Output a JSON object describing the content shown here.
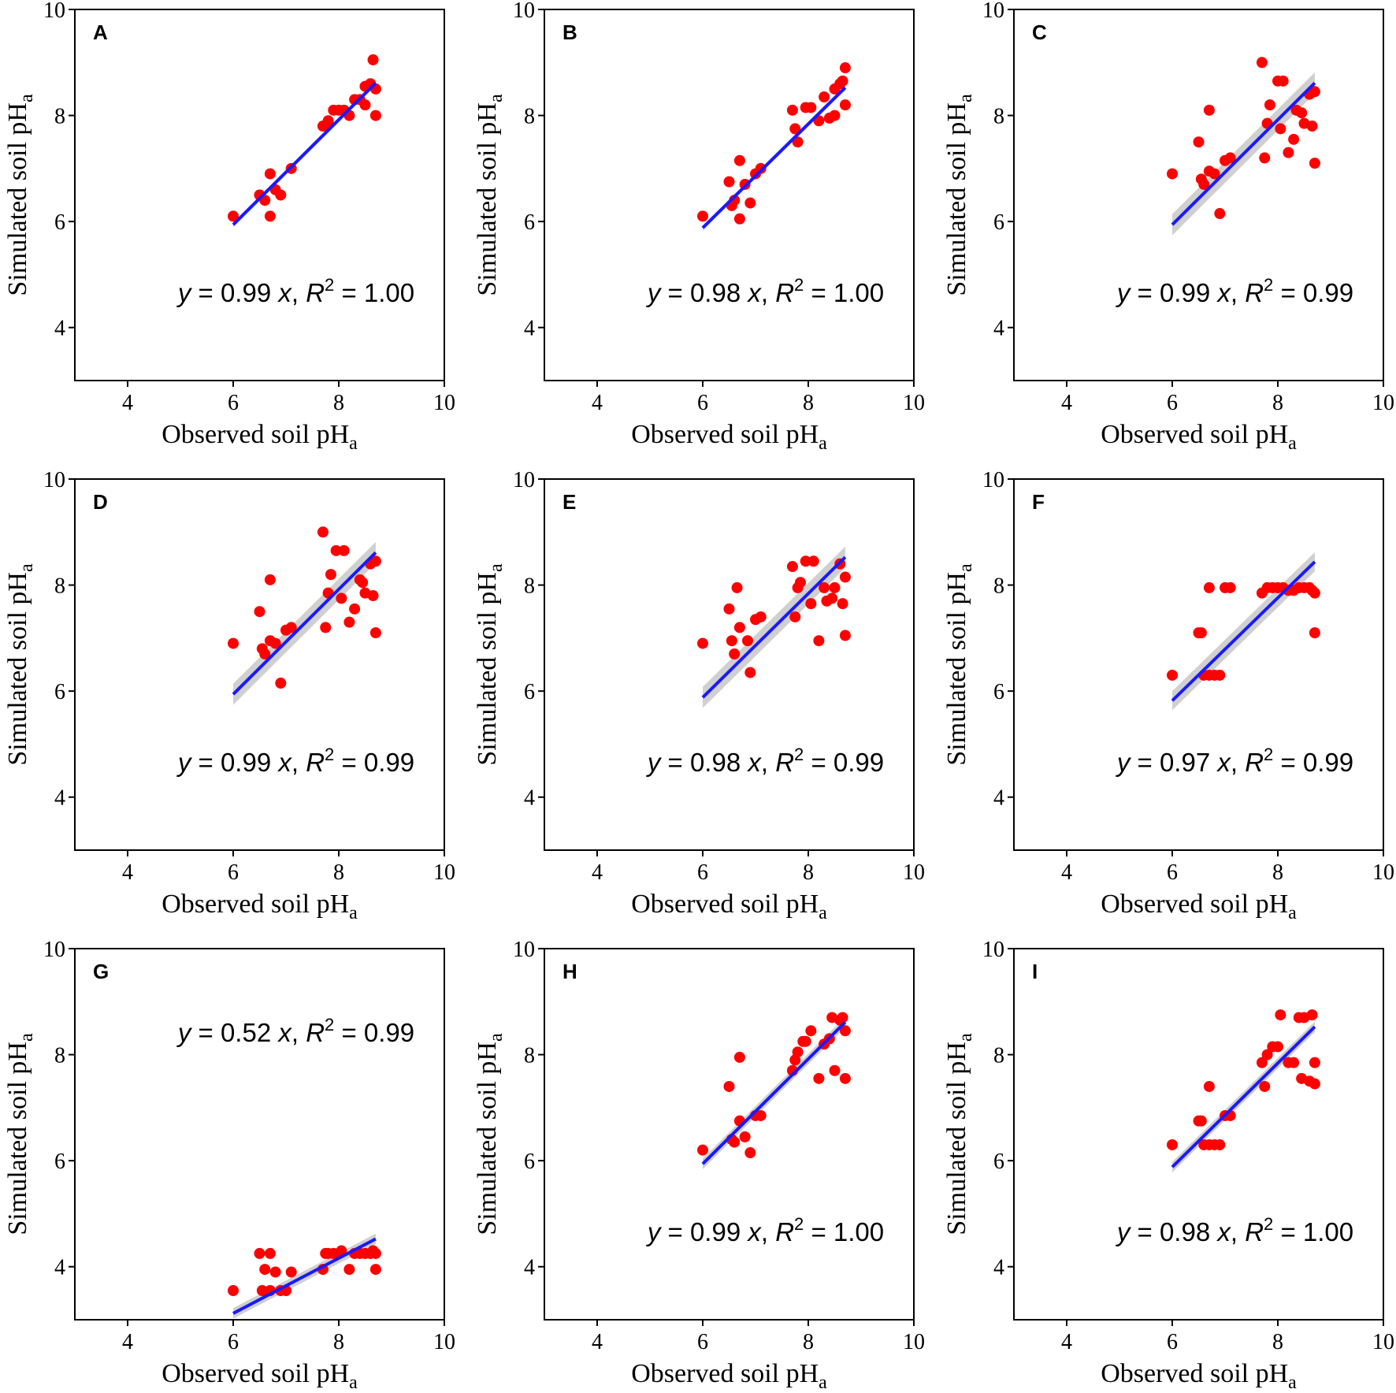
{
  "figure": {
    "x_axis_title": "Observed soil pH",
    "y_axis_title": "Simulated soil pH",
    "subscript": "a",
    "x_ticks": [
      "4",
      "6",
      "8",
      "10"
    ],
    "y_ticks": [
      "4",
      "6",
      "8",
      "10"
    ],
    "colors": {
      "points": "#ff0000",
      "fit_line": "#1a1aff",
      "confidence_band": "#c8c8c8",
      "frame": "#000000"
    }
  },
  "chart_data": [
    {
      "panel": "A",
      "type": "scatter",
      "xlim": [
        3,
        10
      ],
      "ylim": [
        3,
        10
      ],
      "equation": {
        "slope": "0.99",
        "r2": "1.00"
      },
      "fit": {
        "slope": 0.99,
        "x_range": [
          6.0,
          8.7
        ],
        "band": 0.05
      },
      "x": [
        6.0,
        6.5,
        6.6,
        6.7,
        6.7,
        6.8,
        6.9,
        7.1,
        7.7,
        7.8,
        7.8,
        7.9,
        8.0,
        8.1,
        8.2,
        8.3,
        8.4,
        8.5,
        8.5,
        8.6,
        8.65,
        8.7,
        8.7
      ],
      "y": [
        6.1,
        6.5,
        6.4,
        6.9,
        6.1,
        6.6,
        6.5,
        7.0,
        7.8,
        7.9,
        7.85,
        8.1,
        8.1,
        8.1,
        8.0,
        8.3,
        8.3,
        8.2,
        8.55,
        8.6,
        9.05,
        8.5,
        8.0
      ]
    },
    {
      "panel": "B",
      "type": "scatter",
      "xlim": [
        3,
        10
      ],
      "ylim": [
        3,
        10
      ],
      "equation": {
        "slope": "0.98",
        "r2": "1.00"
      },
      "fit": {
        "slope": 0.98,
        "x_range": [
          6.0,
          8.7
        ],
        "band": 0.05
      },
      "x": [
        6.0,
        6.5,
        6.55,
        6.6,
        6.7,
        6.7,
        6.8,
        6.9,
        7.0,
        7.1,
        7.7,
        7.75,
        7.8,
        7.95,
        8.05,
        8.2,
        8.3,
        8.4,
        8.5,
        8.5,
        8.6,
        8.65,
        8.7,
        8.7
      ],
      "y": [
        6.1,
        6.75,
        6.3,
        6.4,
        7.15,
        6.05,
        6.7,
        6.35,
        6.9,
        7.0,
        8.1,
        7.75,
        7.5,
        8.15,
        8.15,
        7.9,
        8.35,
        7.95,
        8.5,
        8.0,
        8.6,
        8.65,
        8.9,
        8.2
      ]
    },
    {
      "panel": "C",
      "type": "scatter",
      "xlim": [
        3,
        10
      ],
      "ylim": [
        3,
        10
      ],
      "equation": {
        "slope": "0.99",
        "r2": "0.99"
      },
      "fit": {
        "slope": 0.99,
        "x_range": [
          6.0,
          8.7
        ],
        "band": 0.2
      },
      "x": [
        6.0,
        6.5,
        6.55,
        6.6,
        6.7,
        6.7,
        6.8,
        6.9,
        7.0,
        7.1,
        7.7,
        7.75,
        7.8,
        7.85,
        8.0,
        8.05,
        8.1,
        8.2,
        8.3,
        8.35,
        8.45,
        8.5,
        8.6,
        8.65,
        8.7,
        8.7
      ],
      "y": [
        6.9,
        7.5,
        6.8,
        6.7,
        8.1,
        6.95,
        6.9,
        6.15,
        7.15,
        7.2,
        9.0,
        7.2,
        7.85,
        8.2,
        8.65,
        7.75,
        8.65,
        7.3,
        7.55,
        8.1,
        8.05,
        7.85,
        8.4,
        7.8,
        8.45,
        7.1
      ]
    },
    {
      "panel": "D",
      "type": "scatter",
      "xlim": [
        3,
        10
      ],
      "ylim": [
        3,
        10
      ],
      "equation": {
        "slope": "0.99",
        "r2": "0.99"
      },
      "fit": {
        "slope": 0.99,
        "x_range": [
          6.0,
          8.7
        ],
        "band": 0.2
      },
      "x": [
        6.0,
        6.5,
        6.55,
        6.6,
        6.7,
        6.7,
        6.8,
        6.9,
        7.0,
        7.1,
        7.7,
        7.75,
        7.8,
        7.85,
        7.95,
        8.05,
        8.1,
        8.2,
        8.3,
        8.4,
        8.45,
        8.5,
        8.6,
        8.65,
        8.7,
        8.7
      ],
      "y": [
        6.9,
        7.5,
        6.8,
        6.7,
        8.1,
        6.95,
        6.9,
        6.15,
        7.15,
        7.2,
        9.0,
        7.2,
        7.85,
        8.2,
        8.65,
        7.75,
        8.65,
        7.3,
        7.55,
        8.1,
        8.05,
        7.85,
        8.4,
        7.8,
        8.45,
        7.1
      ]
    },
    {
      "panel": "E",
      "type": "scatter",
      "xlim": [
        3,
        10
      ],
      "ylim": [
        3,
        10
      ],
      "equation": {
        "slope": "0.98",
        "r2": "0.99"
      },
      "fit": {
        "slope": 0.98,
        "x_range": [
          6.0,
          8.7
        ],
        "band": 0.2
      },
      "x": [
        6.0,
        6.5,
        6.55,
        6.6,
        6.65,
        6.7,
        6.85,
        6.9,
        7.0,
        7.1,
        7.7,
        7.75,
        7.8,
        7.85,
        7.95,
        8.05,
        8.1,
        8.2,
        8.3,
        8.35,
        8.45,
        8.5,
        8.6,
        8.65,
        8.7,
        8.7
      ],
      "y": [
        6.9,
        7.55,
        6.95,
        6.7,
        7.95,
        7.2,
        6.95,
        6.35,
        7.35,
        7.4,
        8.35,
        7.4,
        7.95,
        8.05,
        8.45,
        7.65,
        8.45,
        6.95,
        7.95,
        7.7,
        7.75,
        7.95,
        8.4,
        7.65,
        8.15,
        7.05
      ]
    },
    {
      "panel": "F",
      "type": "scatter",
      "xlim": [
        3,
        10
      ],
      "ylim": [
        3,
        10
      ],
      "equation": {
        "slope": "0.97",
        "r2": "0.99"
      },
      "fit": {
        "slope": 0.97,
        "x_range": [
          6.0,
          8.7
        ],
        "band": 0.18
      },
      "x": [
        6.0,
        6.5,
        6.55,
        6.6,
        6.7,
        6.7,
        6.8,
        6.9,
        7.0,
        7.1,
        7.7,
        7.8,
        7.9,
        8.0,
        8.1,
        8.2,
        8.3,
        8.4,
        8.5,
        8.6,
        8.65,
        8.7,
        8.7
      ],
      "y": [
        6.3,
        7.1,
        7.1,
        6.3,
        7.95,
        6.3,
        6.3,
        6.3,
        7.95,
        7.95,
        7.85,
        7.95,
        7.95,
        7.95,
        7.95,
        7.9,
        7.9,
        7.95,
        7.95,
        7.95,
        7.9,
        7.85,
        7.1
      ]
    },
    {
      "panel": "G",
      "type": "scatter",
      "xlim": [
        3,
        10
      ],
      "ylim": [
        3,
        10
      ],
      "equation": {
        "slope": "0.52",
        "r2": "0.99"
      },
      "fit": {
        "slope": 0.52,
        "x_range": [
          6.0,
          8.7
        ],
        "band": 0.1
      },
      "x": [
        6.0,
        6.5,
        6.55,
        6.6,
        6.7,
        6.7,
        6.8,
        6.9,
        7.0,
        7.1,
        7.7,
        7.75,
        7.8,
        7.9,
        8.0,
        8.05,
        8.2,
        8.3,
        8.4,
        8.5,
        8.6,
        8.65,
        8.7,
        8.7
      ],
      "y": [
        3.55,
        4.25,
        3.55,
        3.95,
        4.25,
        3.55,
        3.9,
        3.55,
        3.55,
        3.9,
        3.95,
        4.25,
        4.25,
        4.25,
        4.25,
        4.3,
        3.95,
        4.25,
        4.25,
        4.25,
        4.25,
        4.3,
        4.25,
        3.95
      ]
    },
    {
      "panel": "H",
      "type": "scatter",
      "xlim": [
        3,
        10
      ],
      "ylim": [
        3,
        10
      ],
      "equation": {
        "slope": "0.99",
        "r2": "1.00"
      },
      "fit": {
        "slope": 0.99,
        "x_range": [
          6.0,
          8.7
        ],
        "band": 0.1
      },
      "x": [
        6.0,
        6.5,
        6.55,
        6.6,
        6.7,
        6.7,
        6.8,
        6.9,
        7.0,
        7.1,
        7.7,
        7.75,
        7.8,
        7.9,
        7.95,
        8.05,
        8.2,
        8.3,
        8.4,
        8.45,
        8.5,
        8.6,
        8.65,
        8.7,
        8.7
      ],
      "y": [
        6.2,
        7.4,
        6.4,
        6.35,
        7.95,
        6.75,
        6.45,
        6.15,
        6.85,
        6.85,
        7.7,
        7.9,
        8.05,
        8.25,
        8.25,
        8.45,
        7.55,
        8.2,
        8.3,
        8.7,
        7.7,
        8.65,
        8.7,
        8.45,
        7.55
      ]
    },
    {
      "panel": "I",
      "type": "scatter",
      "xlim": [
        3,
        10
      ],
      "ylim": [
        3,
        10
      ],
      "equation": {
        "slope": "0.98",
        "r2": "1.00"
      },
      "fit": {
        "slope": 0.98,
        "x_range": [
          6.0,
          8.7
        ],
        "band": 0.1
      },
      "x": [
        6.0,
        6.5,
        6.55,
        6.6,
        6.7,
        6.7,
        6.8,
        6.9,
        7.0,
        7.1,
        7.7,
        7.75,
        7.8,
        7.9,
        8.0,
        8.05,
        8.2,
        8.3,
        8.4,
        8.45,
        8.5,
        8.6,
        8.65,
        8.7,
        8.7
      ],
      "y": [
        6.3,
        6.75,
        6.75,
        6.3,
        7.4,
        6.3,
        6.3,
        6.3,
        6.85,
        6.85,
        7.85,
        7.4,
        8.0,
        8.15,
        8.15,
        8.75,
        7.85,
        7.85,
        8.7,
        7.55,
        8.7,
        7.5,
        8.75,
        7.85,
        7.45
      ]
    }
  ]
}
